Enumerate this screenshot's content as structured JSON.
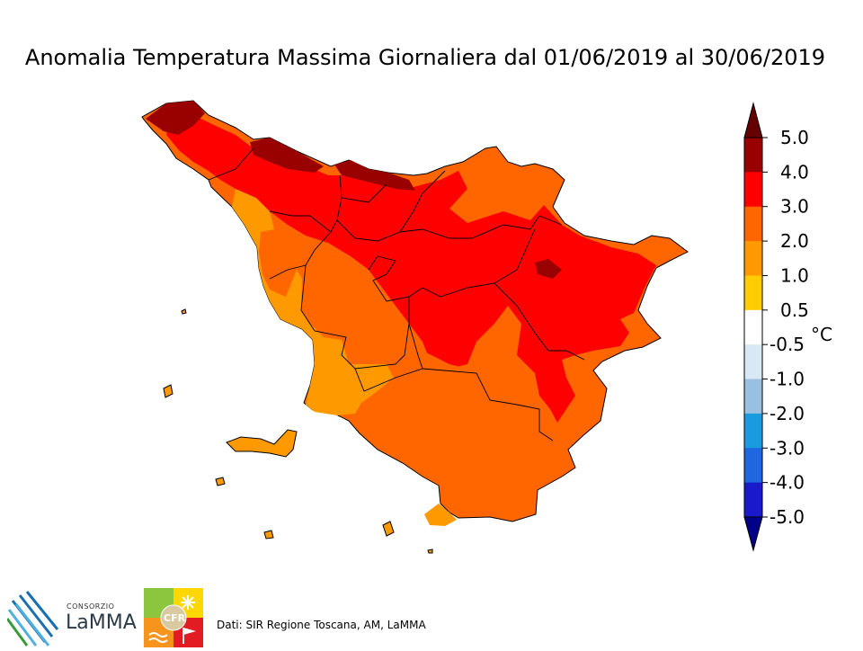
{
  "title": "Anomalia Temperatura Massima Giornaliera dal 01/06/2019 al 30/06/2019",
  "colorbar": {
    "unit": "°C",
    "ticks": [
      "5.0",
      "4.0",
      "3.0",
      "2.0",
      "1.0",
      "0.5",
      "-0.5",
      "-1.0",
      "-2.0",
      "-3.0",
      "-4.0",
      "-5.0"
    ],
    "bins": [
      {
        "range": "4.0 – 5.0",
        "color": "#990000"
      },
      {
        "range": "3.0 – 4.0",
        "color": "#ff0000"
      },
      {
        "range": "2.0 – 3.0",
        "color": "#ff6600"
      },
      {
        "range": "1.0 – 2.0",
        "color": "#ff9900"
      },
      {
        "range": "0.5 – 1.0",
        "color": "#ffcc00"
      },
      {
        "range": "-0.5 – 0.5",
        "color": "#ffffff"
      },
      {
        "range": "-1.0 – -0.5",
        "color": "#d8e8f5"
      },
      {
        "range": "-2.0 – -1.0",
        "color": "#99c0e0"
      },
      {
        "range": "-3.0 – -2.0",
        "color": "#1a9bdf"
      },
      {
        "range": "-4.0 – -3.0",
        "color": "#1f66e0"
      },
      {
        "range": "-5.0 – -4.0",
        "color": "#1a1acc"
      }
    ],
    "over_color": "#660000",
    "under_color": "#000088"
  },
  "map": {
    "region": "Toscana",
    "dominant_anomaly_color": "#ff6600",
    "hot_color": "#ff0000",
    "max_color": "#990000",
    "coast_color": "#ff9900"
  },
  "footer": {
    "credit": "Dati: SIR Regione Toscana, AM, LaMMA",
    "lamma_small": "CONSORZIO",
    "lamma_name": "LaMMA",
    "cfr_label": "CFR"
  }
}
